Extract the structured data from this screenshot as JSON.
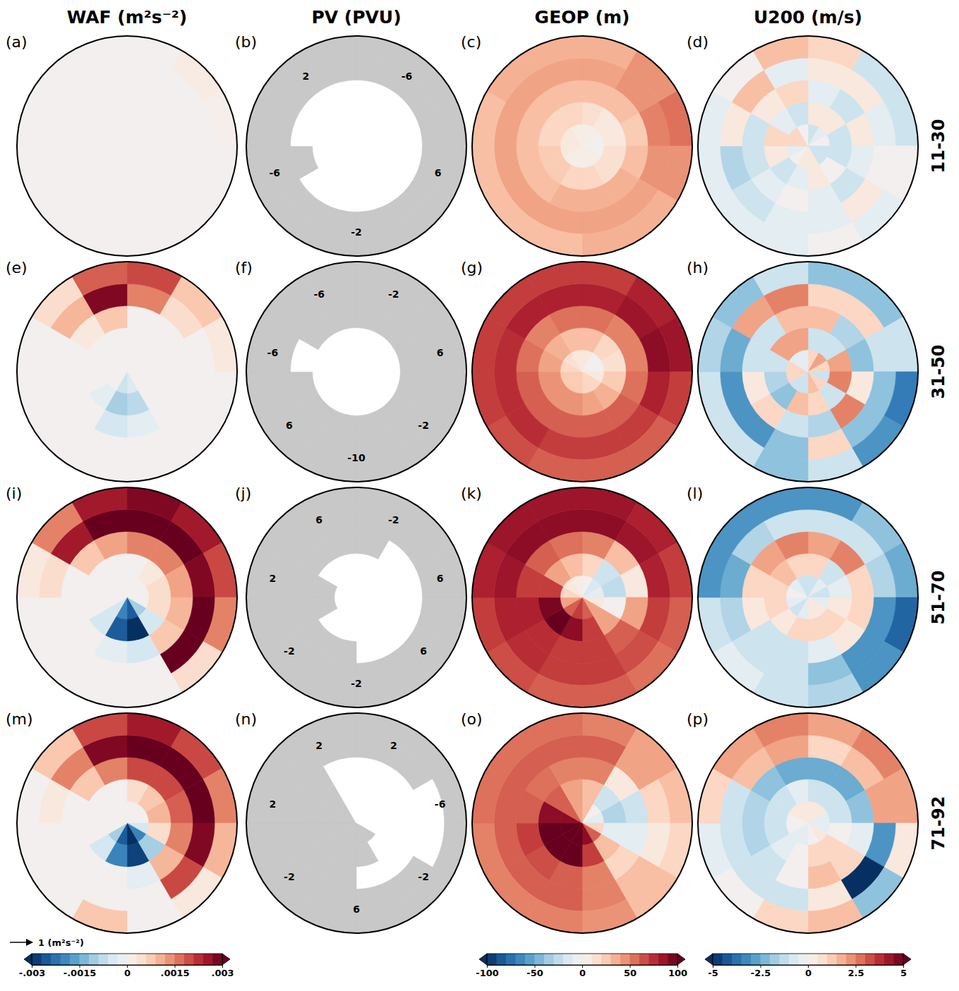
{
  "figure": {
    "columns": [
      {
        "title": "WAF (m²s⁻²)",
        "colorbar": {
          "range": [
            -0.003,
            0.003
          ],
          "ticks": [
            {
              "value": -0.003,
              "label": "-.003"
            },
            {
              "value": -0.0015,
              "label": "-.0015"
            },
            0,
            {
              "value": 0.0015,
              "label": ".0015"
            },
            {
              "value": 0.003,
              "label": ".003"
            }
          ]
        }
      },
      {
        "title": "PV (PVU)"
      },
      {
        "title": "GEOP (m)",
        "colorbar": {
          "range": [
            -100,
            100
          ],
          "ticks": [
            -100,
            -50,
            0,
            50,
            100
          ]
        }
      },
      {
        "title": "U200 (m/s)",
        "colorbar": {
          "range": [
            -5,
            5
          ],
          "ticks": [
            -5,
            -2.5,
            0,
            2.5,
            5
          ]
        }
      }
    ],
    "rows": [
      "11-30",
      "31-50",
      "51-70",
      "71-92"
    ],
    "vector_key": "1 (m²s⁻²)"
  },
  "chart_data": [
    {
      "type": "polar_heatmap",
      "title": "(a)",
      "values": [
        [
          0,
          0,
          0,
          0,
          0,
          0,
          0,
          0,
          0,
          0,
          0,
          0
        ],
        [
          0,
          0,
          0,
          0,
          0,
          0,
          0,
          0,
          0,
          0,
          0,
          0
        ],
        [
          0,
          0,
          0,
          0,
          0,
          0,
          0,
          0,
          0,
          0,
          0,
          0
        ],
        [
          0,
          0,
          0,
          0,
          0,
          0,
          0,
          0,
          0,
          0,
          0,
          0
        ],
        [
          0,
          0.0002,
          0.0001,
          0,
          0,
          0,
          0,
          0,
          0,
          0,
          0,
          0
        ]
      ]
    },
    {
      "type": "polar_contour",
      "title": "(b)",
      "color": "#c8c8c8",
      "labels": [
        -6,
        6,
        -2,
        -6,
        2
      ],
      "values": [
        [
          1,
          1,
          1,
          0.5,
          0.5,
          0.5,
          0.5,
          0.5,
          0.5,
          1,
          1,
          1
        ],
        [
          1,
          1,
          1,
          0.5,
          0,
          0.5,
          0.5,
          0.5,
          0.5,
          0.5,
          0.5,
          1
        ],
        [
          0.5,
          0.5,
          0.5,
          0.5,
          0.3,
          0.2,
          0.2,
          0.2,
          -1,
          0.3,
          0.3,
          0.3
        ],
        [
          -1,
          -2,
          -3,
          -2,
          -1,
          -0.5,
          -1,
          -1,
          -2,
          -1,
          -0.5,
          -0.5
        ],
        [
          -6,
          -6,
          -8,
          -6,
          -6,
          -6,
          -6,
          -6,
          -6,
          -6,
          -6,
          -6
        ]
      ]
    },
    {
      "type": "polar_heatmap",
      "title": "(c)",
      "values": [
        [
          5,
          5,
          0,
          0,
          5,
          5,
          5,
          5,
          10,
          10,
          10,
          5
        ],
        [
          15,
          10,
          10,
          15,
          15,
          20,
          20,
          25,
          25,
          20,
          20,
          20
        ],
        [
          30,
          30,
          25,
          30,
          35,
          35,
          35,
          30,
          30,
          30,
          30,
          30
        ],
        [
          40,
          45,
          50,
          45,
          40,
          40,
          40,
          40,
          40,
          40,
          40,
          40
        ],
        [
          35,
          45,
          55,
          45,
          35,
          35,
          30,
          30,
          30,
          30,
          35,
          35
        ]
      ]
    },
    {
      "type": "polar_heatmap",
      "title": "(d)",
      "values": [
        [
          -1,
          -0.5,
          0,
          -1,
          -1,
          0.5,
          0.5,
          0,
          -0.5,
          1,
          1,
          0
        ],
        [
          0.5,
          0.5,
          -1,
          -1,
          0,
          0.5,
          -0.5,
          -1,
          0.5,
          1,
          -0.5,
          -1
        ],
        [
          -0.5,
          -1,
          0.5,
          -0.5,
          -1,
          -0.5,
          0,
          -0.5,
          -1,
          -1,
          0.5,
          1
        ],
        [
          0.5,
          0.5,
          -0.5,
          0,
          0.5,
          -0.5,
          -0.5,
          -1,
          -1.5,
          0.5,
          1.5,
          -0.5
        ],
        [
          1,
          -1,
          -1,
          0,
          -0.5,
          0,
          -0.5,
          -0.5,
          -0.5,
          -0.5,
          0,
          1.5
        ]
      ]
    },
    {
      "type": "polar_heatmap",
      "title": "(e)",
      "values": [
        [
          0,
          0,
          0,
          0,
          0,
          -0.0004,
          -0.0006,
          0,
          0,
          0,
          0,
          0
        ],
        [
          0,
          0,
          0,
          0,
          0,
          -0.0008,
          -0.001,
          -0.0003,
          0,
          0,
          0,
          0
        ],
        [
          0,
          0,
          0,
          0,
          0,
          -0.0003,
          -0.0005,
          0,
          0,
          0,
          0.0003,
          0.0008
        ],
        [
          0.0015,
          0.0005,
          0,
          0,
          0,
          0,
          0,
          0,
          0,
          0,
          0.001,
          0.0028
        ],
        [
          0.002,
          0.0008,
          0.0003,
          0,
          0,
          0,
          0,
          0,
          0,
          0,
          0.0005,
          0.0018
        ]
      ]
    },
    {
      "type": "polar_contour",
      "title": "(f)",
      "color": "#c8c8c8",
      "labels": [
        -2,
        6,
        -2,
        -10,
        6,
        -6,
        -6
      ],
      "values": [
        [
          1,
          1,
          0.5,
          0.5,
          0.5,
          0.5,
          0.5,
          1,
          1,
          1,
          1,
          1
        ],
        [
          1,
          1,
          1,
          1,
          0.5,
          0.5,
          0.5,
          0.5,
          0.5,
          0.5,
          0.5,
          1
        ],
        [
          -0.5,
          -1,
          -1,
          -1,
          -0.5,
          -1,
          -1,
          -1,
          -1,
          0.3,
          -0.5,
          -0.5
        ],
        [
          -3,
          -6,
          -8,
          -3,
          -3,
          -3,
          -3,
          -3,
          -3,
          -2,
          -2,
          -2
        ],
        [
          -6,
          -8,
          -10,
          -6,
          -6,
          -6,
          -6,
          -6,
          -6,
          -6,
          -6,
          -6
        ]
      ]
    },
    {
      "type": "polar_heatmap",
      "title": "(g)",
      "values": [
        [
          10,
          0,
          0,
          10,
          20,
          20,
          25,
          25,
          25,
          20,
          15,
          10
        ],
        [
          30,
          20,
          15,
          25,
          35,
          40,
          45,
          45,
          45,
          40,
          35,
          30
        ],
        [
          55,
          50,
          50,
          55,
          60,
          60,
          60,
          60,
          60,
          55,
          50,
          55
        ],
        [
          80,
          85,
          90,
          80,
          70,
          70,
          70,
          75,
          75,
          75,
          80,
          80
        ],
        [
          70,
          80,
          85,
          70,
          60,
          60,
          60,
          65,
          70,
          70,
          70,
          70
        ]
      ]
    },
    {
      "type": "polar_heatmap",
      "title": "(h)",
      "values": [
        [
          1,
          2,
          1,
          -1,
          1,
          1.5,
          -1,
          -1,
          1,
          1,
          -0.5,
          -0.5
        ],
        [
          -1,
          -1,
          2,
          2.5,
          -1,
          1,
          1.5,
          -2,
          -1.5,
          -1,
          2,
          2
        ],
        [
          1.5,
          -1.5,
          -2,
          0.5,
          2.5,
          -1.5,
          -1,
          1,
          0.5,
          -1,
          -1,
          1.5
        ],
        [
          1,
          1,
          -1,
          -2,
          -2,
          1,
          -2,
          -3,
          -3,
          -2.5,
          2,
          2.5
        ],
        [
          -2,
          -2,
          -1,
          -3.5,
          -3,
          -1,
          -2,
          -1,
          -1,
          -1.5,
          -2,
          -1
        ]
      ]
    },
    {
      "type": "polar_heatmap",
      "title": "(i)",
      "values": [
        [
          0,
          0,
          0,
          0,
          -0.001,
          -0.0025,
          -0.002,
          -0.0005,
          0,
          0,
          0,
          0
        ],
        [
          0,
          0.0003,
          0.0005,
          0.0005,
          -0.0005,
          -0.003,
          -0.0025,
          -0.0005,
          0,
          0,
          0,
          0
        ],
        [
          0.0015,
          0.0015,
          0.0012,
          0.001,
          0.0008,
          -0.0005,
          -0.0003,
          0,
          0,
          0,
          0.0008,
          0.0012
        ],
        [
          0.003,
          0.003,
          0.0028,
          0.003,
          0.0032,
          0,
          0,
          0,
          0,
          0.0005,
          0.0025,
          0.003
        ],
        [
          0.0028,
          0.0025,
          0.002,
          0.0015,
          0.0005,
          0,
          0,
          0,
          0,
          0.0003,
          0.0015,
          0.0025
        ]
      ]
    },
    {
      "type": "polar_contour",
      "title": "(j)",
      "color": "#c8c8c8",
      "labels": [
        -2,
        6,
        6,
        -2,
        -2,
        2,
        6
      ],
      "values": [
        [
          2,
          2,
          2,
          2,
          1,
          0.5,
          0.5,
          0.5,
          0.5,
          0.5,
          1,
          1
        ],
        [
          2,
          3,
          3,
          2,
          1,
          0.5,
          0.5,
          0.5,
          -0.5,
          -0.5,
          0.5,
          1
        ],
        [
          -1,
          0.5,
          2,
          1,
          0.5,
          0.3,
          -1,
          -1,
          -1,
          -1,
          -1,
          -1
        ],
        [
          -2,
          -3,
          -4,
          -3,
          -2,
          -2,
          -2,
          -2,
          -2,
          -2,
          -2,
          -2
        ],
        [
          -6,
          -6,
          -8,
          -6,
          -6,
          -6,
          -6,
          -6,
          -6,
          -6,
          -6,
          -6
        ]
      ]
    },
    {
      "type": "polar_heatmap",
      "title": "(k)",
      "values": [
        [
          0,
          -15,
          -10,
          10,
          40,
          60,
          70,
          60,
          40,
          20,
          10,
          5
        ],
        [
          20,
          -20,
          -25,
          0,
          40,
          70,
          90,
          100,
          95,
          70,
          40,
          30
        ],
        [
          50,
          30,
          10,
          40,
          60,
          70,
          70,
          75,
          80,
          70,
          60,
          55
        ],
        [
          90,
          85,
          80,
          70,
          65,
          70,
          70,
          75,
          80,
          85,
          90,
          90
        ],
        [
          85,
          80,
          70,
          60,
          55,
          60,
          60,
          65,
          70,
          80,
          85,
          85
        ]
      ]
    },
    {
      "type": "polar_heatmap",
      "title": "(l)",
      "values": [
        [
          -1,
          -0.5,
          -1,
          -0.5,
          0.5,
          0.5,
          -0.5,
          -1,
          -0.5,
          0,
          -0.5,
          -1
        ],
        [
          1,
          -1,
          -0.5,
          0.5,
          1,
          1,
          1,
          0.5,
          1,
          1,
          1.5,
          1
        ],
        [
          2,
          2.5,
          1,
          1,
          0.5,
          -0.5,
          -1,
          -1,
          0.5,
          1,
          2,
          2.5
        ],
        [
          -1,
          -1,
          -1.5,
          -3,
          -3,
          -2,
          -1,
          -1,
          -1.5,
          -2.5,
          -1.5,
          -1
        ],
        [
          -3,
          -2,
          -2.5,
          -4,
          -3,
          -1.5,
          -1,
          -0.5,
          -1,
          -3,
          -3,
          -3
        ]
      ]
    },
    {
      "type": "polar_heatmap",
      "title": "(m)",
      "values": [
        [
          0,
          0,
          0,
          -0.0005,
          -0.002,
          -0.003,
          -0.0025,
          -0.001,
          0,
          0,
          0,
          0
        ],
        [
          0.0005,
          0.0008,
          0.001,
          0.0005,
          -0.001,
          -0.0028,
          -0.002,
          -0.0005,
          0,
          0,
          0,
          0
        ],
        [
          0.002,
          0.002,
          0.0018,
          0.0015,
          0.001,
          -0.0003,
          0,
          0,
          0,
          0,
          0.0008,
          0.0015
        ],
        [
          0.003,
          0.003,
          0.003,
          0.0028,
          0.002,
          0,
          0,
          0,
          0,
          0.0003,
          0.0015,
          0.0028
        ],
        [
          0.0025,
          0.002,
          0.0015,
          0.001,
          0.0003,
          0,
          0.0008,
          0,
          0,
          0,
          0.0008,
          0.002
        ]
      ]
    },
    {
      "type": "polar_contour",
      "title": "(n)",
      "color": "#c8c8c8",
      "labels": [
        2,
        -6,
        -2,
        6,
        -2,
        2,
        2
      ],
      "values": [
        [
          1,
          2,
          2,
          1,
          -1,
          -2,
          -3,
          -3,
          -3,
          -2,
          -1,
          0.5
        ],
        [
          2,
          3,
          4,
          3,
          1,
          -1,
          -2,
          -3,
          -4,
          -3,
          -2,
          1
        ],
        [
          2,
          3,
          3,
          2,
          1,
          0.5,
          -1,
          -2,
          -2,
          -2,
          -1,
          0.5
        ],
        [
          -2,
          -1,
          0.5,
          0.5,
          -1,
          -2,
          -2,
          -2,
          -2,
          -2,
          -2,
          -2
        ],
        [
          -6,
          -6,
          -6,
          -6,
          -6,
          -6,
          -2,
          -6,
          -6,
          -6,
          -6,
          -6
        ]
      ]
    },
    {
      "type": "polar_heatmap",
      "title": "(o)",
      "values": [
        [
          30,
          0,
          -10,
          20,
          60,
          90,
          110,
          110,
          110,
          90,
          60,
          40
        ],
        [
          30,
          -20,
          -30,
          -10,
          30,
          70,
          100,
          110,
          110,
          90,
          60,
          40
        ],
        [
          50,
          10,
          -20,
          -10,
          20,
          50,
          60,
          65,
          70,
          60,
          55,
          50
        ],
        [
          60,
          40,
          20,
          10,
          30,
          50,
          60,
          60,
          60,
          60,
          60,
          60
        ],
        [
          50,
          40,
          30,
          20,
          30,
          45,
          50,
          50,
          50,
          55,
          55,
          55
        ]
      ]
    },
    {
      "type": "polar_heatmap",
      "title": "(p)",
      "values": [
        [
          0.5,
          0.5,
          -0.5,
          -0.5,
          0.5,
          0,
          -0.5,
          -0.5,
          0,
          0,
          0.5,
          0.5
        ],
        [
          -1,
          -1,
          -1,
          0,
          1,
          1,
          0,
          -0.5,
          -1,
          -1,
          -1,
          -0.5
        ],
        [
          -2.5,
          -2.5,
          -2,
          -0.5,
          1,
          1.5,
          0,
          -1,
          -1.5,
          -1.5,
          -2,
          -2.5
        ],
        [
          1,
          1.5,
          2,
          -3,
          -5,
          0.5,
          -1,
          -1,
          -1,
          -1,
          1.5,
          2
        ],
        [
          2,
          2.5,
          2,
          0.5,
          -2,
          1.5,
          1,
          0,
          -0.5,
          1,
          2,
          2.5
        ]
      ]
    }
  ]
}
